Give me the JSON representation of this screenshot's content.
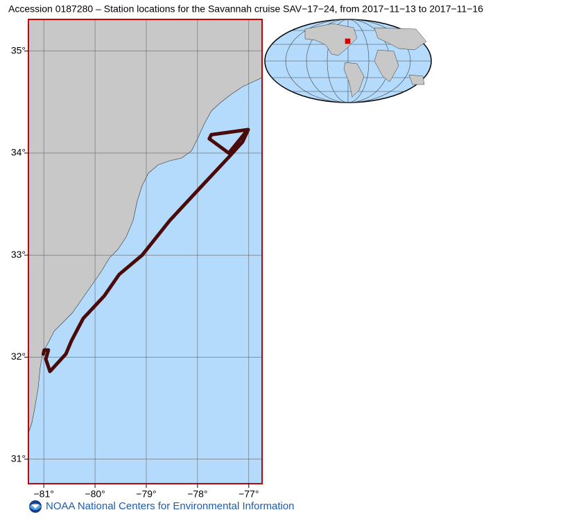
{
  "title": "Accession 0187280 – Station locations for the Savannah cruise SAV−17−24, from 2017−11−13 to 2017−11−16",
  "map": {
    "xlim": [
      -81.3,
      -76.74
    ],
    "ylim": [
      30.76,
      35.31
    ],
    "lon_ticks": [
      {
        "value": -81,
        "label": "−81°"
      },
      {
        "value": -80,
        "label": "−80°"
      },
      {
        "value": -79,
        "label": "−79°"
      },
      {
        "value": -78,
        "label": "−78°"
      },
      {
        "value": -77,
        "label": "−77°"
      }
    ],
    "lat_ticks": [
      {
        "value": 31,
        "label": "31°"
      },
      {
        "value": 32,
        "label": "32°"
      },
      {
        "value": 33,
        "label": "33°"
      },
      {
        "value": 34,
        "label": "34°"
      },
      {
        "value": 35,
        "label": "35°"
      }
    ],
    "track_color": "#4a0a0a",
    "track": {
      "lon": [
        -81.01,
        -80.99,
        -80.91,
        -80.96,
        -80.88,
        -80.57,
        -80.46,
        -80.23,
        -79.82,
        -79.53,
        -79.08,
        -78.54,
        -77.93,
        -77.39,
        -77.12,
        -77.01,
        -77.73,
        -77.77,
        -77.39,
        -77.05
      ],
      "lat": [
        32.03,
        32.07,
        32.07,
        31.98,
        31.86,
        32.03,
        32.16,
        32.38,
        32.6,
        32.81,
        33.0,
        33.34,
        33.67,
        33.96,
        34.11,
        34.23,
        34.18,
        34.14,
        34.0,
        34.21
      ]
    }
  },
  "credit": "NOAA National Centers for Environmental Information"
}
